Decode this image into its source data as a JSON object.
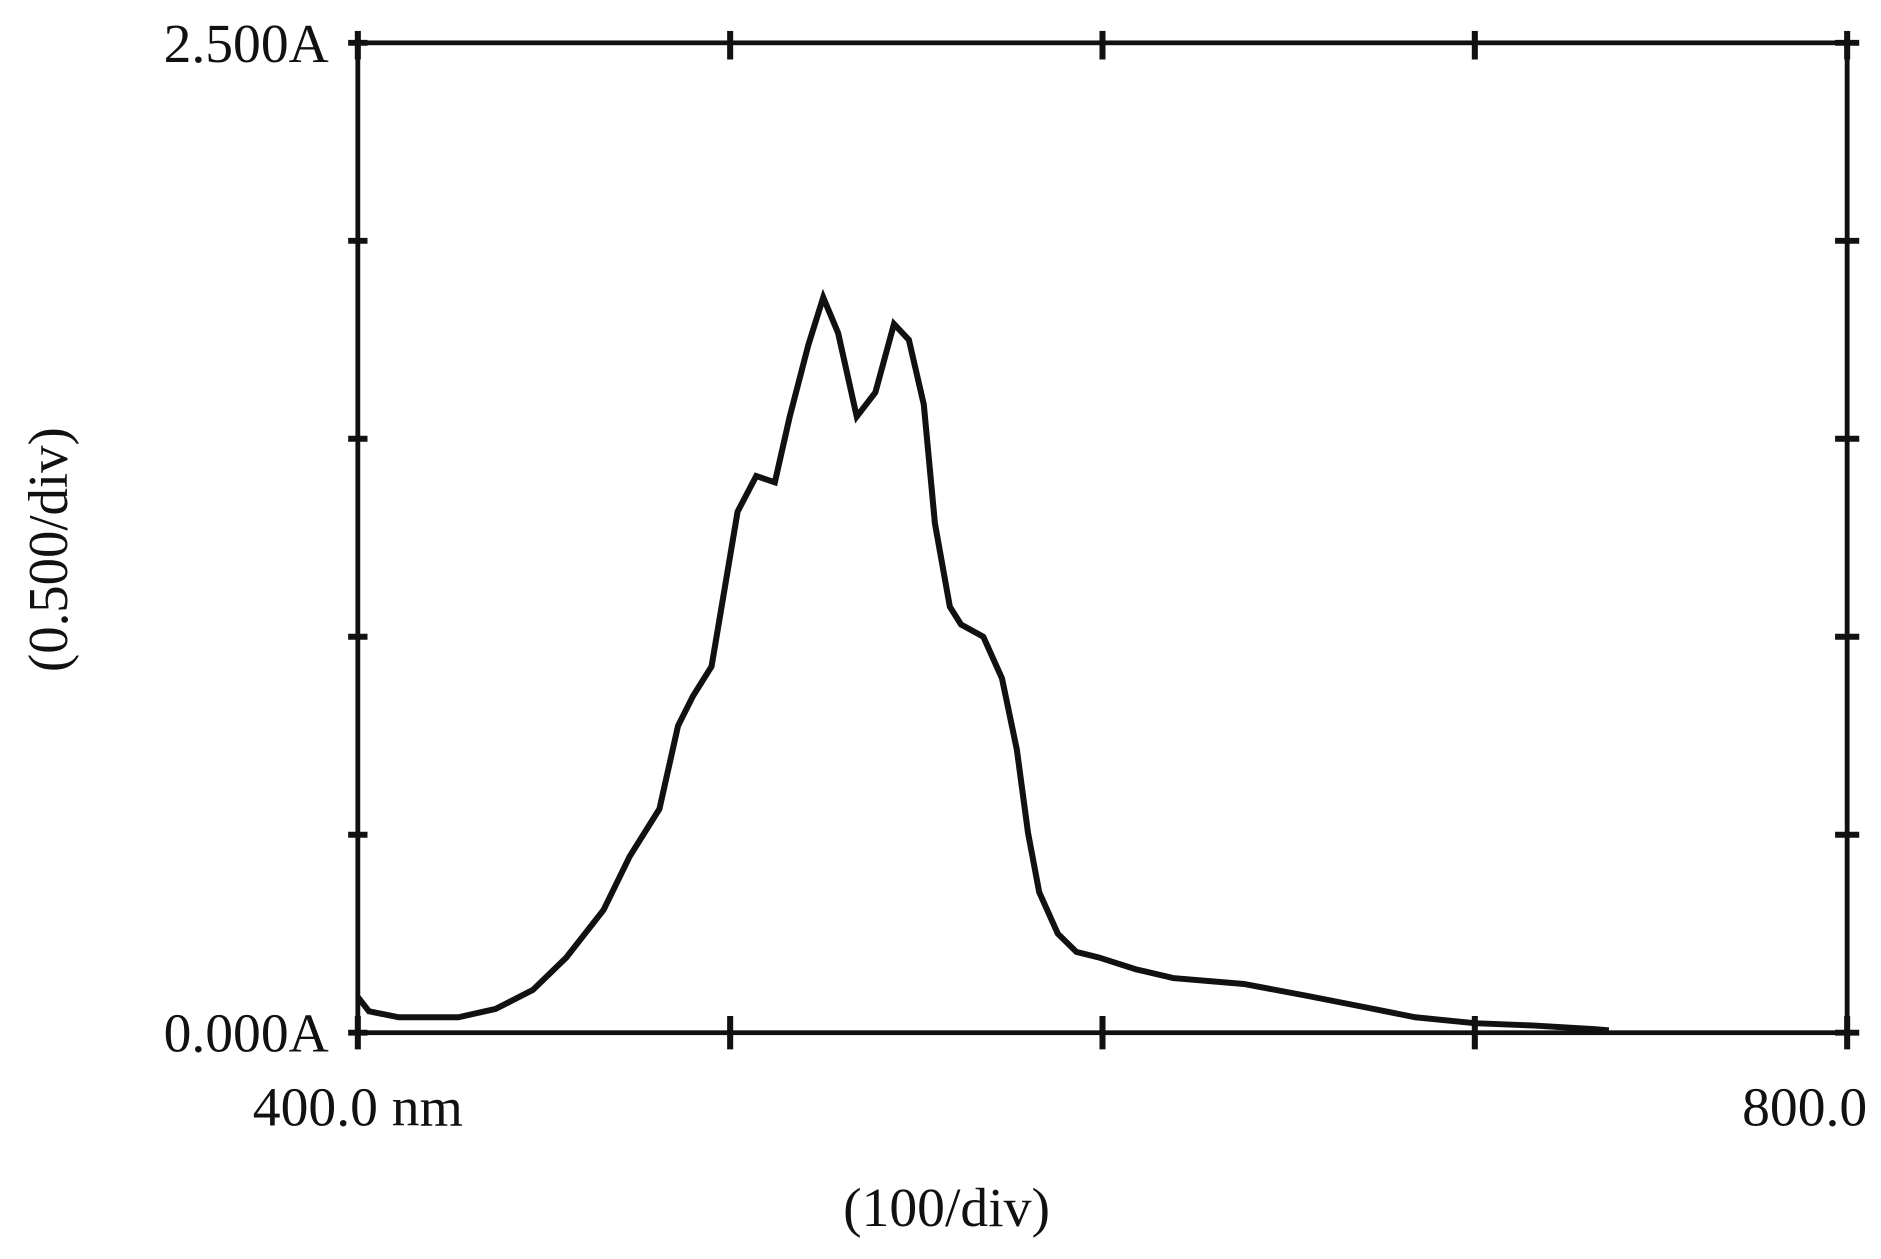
{
  "chart_data": {
    "type": "line",
    "x_label": "(100/div)",
    "y_label": "(0.500/div)",
    "x": [
      400,
      403,
      411,
      427,
      437,
      447,
      456,
      466,
      473,
      481,
      486,
      490,
      495,
      502,
      507,
      512,
      516,
      521,
      525,
      529,
      534,
      539,
      544,
      548,
      552,
      555,
      559,
      562,
      568,
      573,
      577,
      580,
      583,
      588,
      593,
      599,
      609,
      619,
      638,
      655,
      668,
      684,
      700,
      716,
      732,
      736
    ],
    "series": [
      {
        "color": "#111111",
        "values": [
          0.09,
          0.054,
          0.039,
          0.039,
          0.06,
          0.108,
          0.19,
          0.31,
          0.445,
          0.565,
          0.775,
          0.85,
          0.925,
          1.316,
          1.406,
          1.39,
          1.556,
          1.737,
          1.857,
          1.767,
          1.556,
          1.617,
          1.79,
          1.75,
          1.587,
          1.286,
          1.076,
          1.031,
          1.0,
          0.895,
          0.715,
          0.505,
          0.355,
          0.25,
          0.204,
          0.19,
          0.16,
          0.138,
          0.123,
          0.093,
          0.069,
          0.039,
          0.024,
          0.018,
          0.009,
          0.006
        ]
      }
    ],
    "xlim": [
      400,
      800
    ],
    "xticks": [
      {
        "value": 400,
        "label": "400.0 nm"
      },
      {
        "value": 500,
        "label": null
      },
      {
        "value": 600,
        "label": null
      },
      {
        "value": 700,
        "label": null
      },
      {
        "value": 800,
        "label": "800.0 nm"
      }
    ],
    "ylim": [
      0,
      2.5
    ],
    "yticks": [
      {
        "value": 0,
        "label": "0.000A"
      },
      {
        "value": 0.5,
        "label": null
      },
      {
        "value": 1,
        "label": null
      },
      {
        "value": 1.5,
        "label": null
      },
      {
        "value": 2,
        "label": null
      },
      {
        "value": 2.5,
        "label": "2.500A"
      }
    ]
  }
}
